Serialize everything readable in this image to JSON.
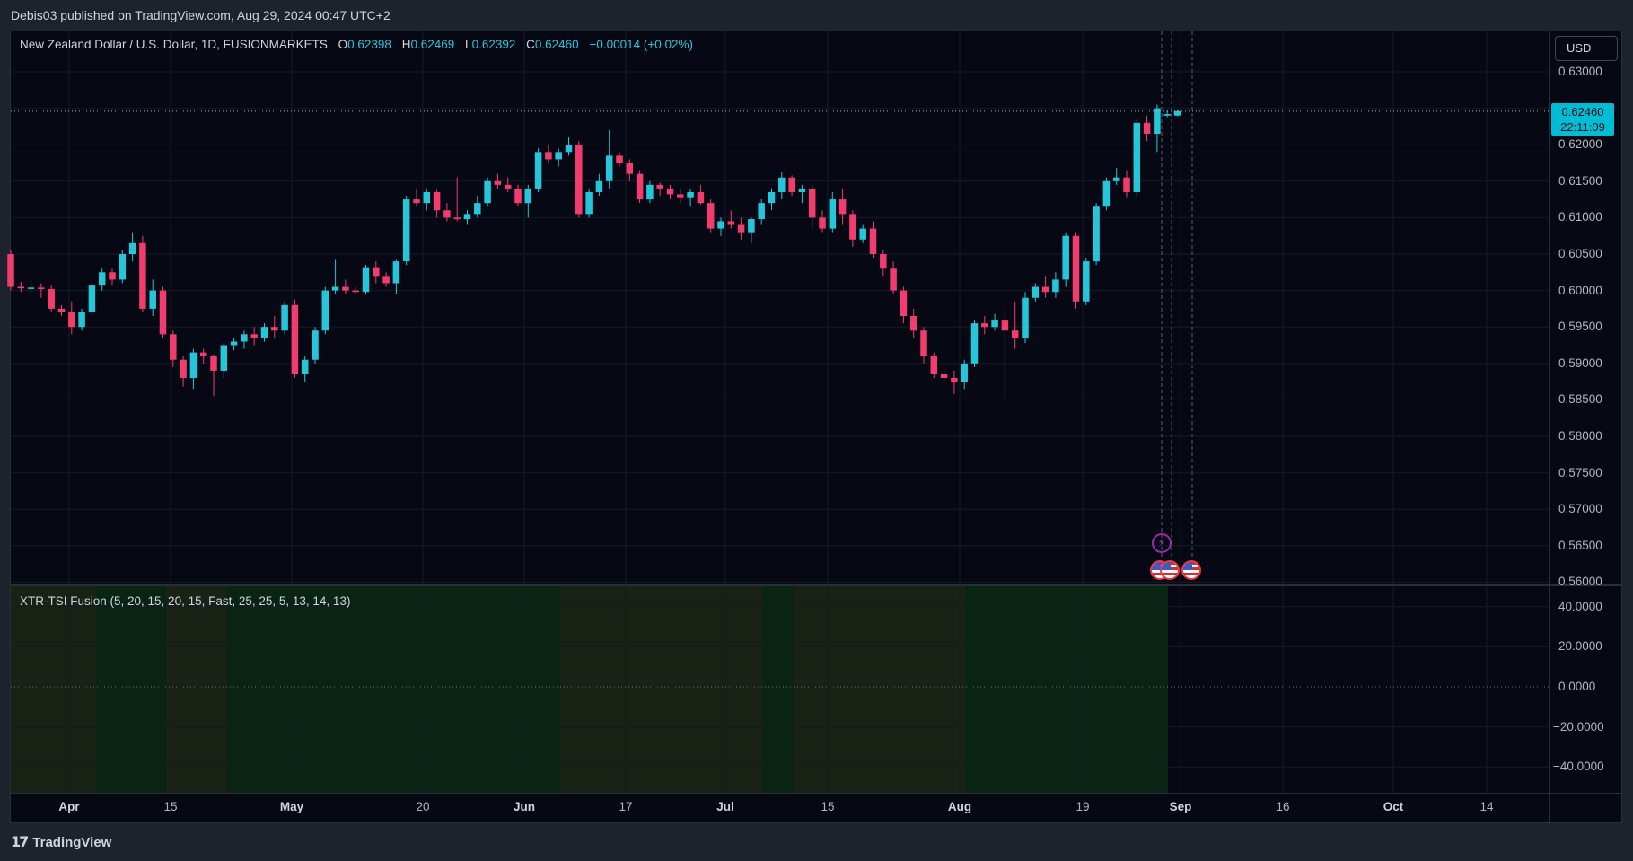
{
  "header": {
    "published_line": "Debis03 published on TradingView.com, Aug 29, 2024 00:47 UTC+2"
  },
  "legend": {
    "symbol": "New Zealand Dollar / U.S. Dollar, 1D, FUSIONMARKETS",
    "o_label": "O",
    "o_value": "0.62398",
    "h_label": "H",
    "h_value": "0.62469",
    "l_label": "L",
    "l_value": "0.62392",
    "c_label": "C",
    "c_value": "0.62460",
    "change": "+0.00014 (+0.02%)"
  },
  "indicator": {
    "label": "XTR-TSI Fusion (5, 20, 15, 20, 15, Fast, 25, 25, 5, 13, 14, 13)"
  },
  "price_axis": {
    "currency_button": "USD",
    "current_price": "0.62460",
    "countdown": "22:11:09",
    "ticks": [
      "0.63000",
      "0.62000",
      "0.61500",
      "0.61000",
      "0.60500",
      "0.60000",
      "0.59500",
      "0.59000",
      "0.58500",
      "0.58000",
      "0.57500",
      "0.57000",
      "0.56500",
      "0.56000"
    ],
    "indicator_ticks": [
      "40.0000",
      "20.0000",
      "0.0000",
      "−20.0000",
      "−40.0000"
    ]
  },
  "time_axis": {
    "labels": [
      {
        "text": "Apr",
        "bold": true
      },
      {
        "text": "15",
        "bold": false
      },
      {
        "text": "May",
        "bold": true
      },
      {
        "text": "20",
        "bold": false
      },
      {
        "text": "Jun",
        "bold": true
      },
      {
        "text": "17",
        "bold": false
      },
      {
        "text": "Jul",
        "bold": true
      },
      {
        "text": "15",
        "bold": false
      },
      {
        "text": "Aug",
        "bold": true
      },
      {
        "text": "19",
        "bold": false
      },
      {
        "text": "Sep",
        "bold": true
      },
      {
        "text": "16",
        "bold": false
      },
      {
        "text": "Oct",
        "bold": true
      },
      {
        "text": "14",
        "bold": false
      }
    ]
  },
  "colors": {
    "up": "#26c6da",
    "down": "#f23c6e",
    "background": "#060913",
    "grid": "#151a26",
    "zone_green": "#0a2414",
    "zone_olive": "#1a2216"
  },
  "footer": {
    "brand": "TradingView",
    "logo_icon": "tradingview-logo-icon"
  },
  "chart_data": {
    "type": "candlestick",
    "symbol": "New Zealand Dollar / U.S. Dollar",
    "interval": "1D",
    "ylim": [
      0.5595,
      0.6315
    ],
    "candles": [
      [
        0.605,
        0.6055,
        0.6,
        0.6005
      ],
      [
        0.6005,
        0.6012,
        0.5998,
        0.6003
      ],
      [
        0.6003,
        0.601,
        0.5998,
        0.6004
      ],
      [
        0.6004,
        0.601,
        0.599,
        0.6002
      ],
      [
        0.6002,
        0.6008,
        0.597,
        0.5975
      ],
      [
        0.5975,
        0.598,
        0.5965,
        0.597
      ],
      [
        0.597,
        0.5985,
        0.594,
        0.595
      ],
      [
        0.595,
        0.5975,
        0.5945,
        0.597
      ],
      [
        0.597,
        0.6012,
        0.5965,
        0.6008
      ],
      [
        0.6008,
        0.603,
        0.6,
        0.6025
      ],
      [
        0.6025,
        0.603,
        0.6008,
        0.6015
      ],
      [
        0.6015,
        0.6055,
        0.601,
        0.605
      ],
      [
        0.605,
        0.608,
        0.604,
        0.6065
      ],
      [
        0.6065,
        0.6075,
        0.597,
        0.5975
      ],
      [
        0.5975,
        0.6015,
        0.5965,
        0.6
      ],
      [
        0.6,
        0.6005,
        0.5935,
        0.594
      ],
      [
        0.594,
        0.5945,
        0.5895,
        0.5905
      ],
      [
        0.5905,
        0.591,
        0.5868,
        0.588
      ],
      [
        0.588,
        0.592,
        0.5865,
        0.5915
      ],
      [
        0.5915,
        0.592,
        0.59,
        0.591
      ],
      [
        0.591,
        0.5912,
        0.5855,
        0.589
      ],
      [
        0.589,
        0.5928,
        0.588,
        0.5925
      ],
      [
        0.5925,
        0.5935,
        0.5918,
        0.593
      ],
      [
        0.593,
        0.5945,
        0.592,
        0.594
      ],
      [
        0.594,
        0.595,
        0.5925,
        0.5935
      ],
      [
        0.5935,
        0.5955,
        0.593,
        0.595
      ],
      [
        0.595,
        0.5965,
        0.5935,
        0.5945
      ],
      [
        0.5945,
        0.5985,
        0.594,
        0.598
      ],
      [
        0.598,
        0.5988,
        0.588,
        0.5885
      ],
      [
        0.5885,
        0.591,
        0.5875,
        0.5905
      ],
      [
        0.5905,
        0.595,
        0.59,
        0.5945
      ],
      [
        0.5945,
        0.6005,
        0.594,
        0.6
      ],
      [
        0.6,
        0.6042,
        0.5995,
        0.6005
      ],
      [
        0.6005,
        0.6015,
        0.5995,
        0.6
      ],
      [
        0.6,
        0.6005,
        0.5995,
        0.5998
      ],
      [
        0.5998,
        0.6035,
        0.5995,
        0.6032
      ],
      [
        0.6032,
        0.604,
        0.601,
        0.602
      ],
      [
        0.602,
        0.6025,
        0.6005,
        0.601
      ],
      [
        0.601,
        0.6042,
        0.5995,
        0.604
      ],
      [
        0.604,
        0.613,
        0.6035,
        0.6125
      ],
      [
        0.6125,
        0.614,
        0.6115,
        0.612
      ],
      [
        0.612,
        0.614,
        0.611,
        0.6135
      ],
      [
        0.6135,
        0.6138,
        0.61,
        0.611
      ],
      [
        0.611,
        0.612,
        0.6095,
        0.61
      ],
      [
        0.61,
        0.6155,
        0.6095,
        0.6098
      ],
      [
        0.6098,
        0.611,
        0.609,
        0.6105
      ],
      [
        0.6105,
        0.613,
        0.61,
        0.612
      ],
      [
        0.612,
        0.6155,
        0.6115,
        0.615
      ],
      [
        0.615,
        0.616,
        0.614,
        0.6145
      ],
      [
        0.6145,
        0.6155,
        0.6135,
        0.614
      ],
      [
        0.614,
        0.6145,
        0.6115,
        0.612
      ],
      [
        0.612,
        0.6145,
        0.61,
        0.614
      ],
      [
        0.614,
        0.6195,
        0.6135,
        0.619
      ],
      [
        0.619,
        0.62,
        0.6175,
        0.618
      ],
      [
        0.618,
        0.6195,
        0.617,
        0.619
      ],
      [
        0.619,
        0.621,
        0.6185,
        0.62
      ],
      [
        0.62,
        0.6205,
        0.61,
        0.6105
      ],
      [
        0.6105,
        0.614,
        0.61,
        0.6135
      ],
      [
        0.6135,
        0.616,
        0.613,
        0.615
      ],
      [
        0.615,
        0.622,
        0.614,
        0.6185
      ],
      [
        0.6185,
        0.619,
        0.617,
        0.6175
      ],
      [
        0.6175,
        0.618,
        0.615,
        0.616
      ],
      [
        0.616,
        0.6165,
        0.612,
        0.6125
      ],
      [
        0.6125,
        0.615,
        0.612,
        0.6145
      ],
      [
        0.6145,
        0.6148,
        0.613,
        0.614
      ],
      [
        0.614,
        0.6145,
        0.6125,
        0.6132
      ],
      [
        0.6132,
        0.614,
        0.612,
        0.6128
      ],
      [
        0.6128,
        0.614,
        0.6115,
        0.6135
      ],
      [
        0.6135,
        0.6145,
        0.6118,
        0.612
      ],
      [
        0.612,
        0.6125,
        0.608,
        0.6085
      ],
      [
        0.6085,
        0.61,
        0.6075,
        0.6095
      ],
      [
        0.6095,
        0.611,
        0.6085,
        0.609
      ],
      [
        0.609,
        0.61,
        0.607,
        0.608
      ],
      [
        0.608,
        0.61,
        0.6065,
        0.6098
      ],
      [
        0.6098,
        0.6125,
        0.609,
        0.612
      ],
      [
        0.612,
        0.614,
        0.611,
        0.6135
      ],
      [
        0.6135,
        0.6162,
        0.6125,
        0.6155
      ],
      [
        0.6155,
        0.6158,
        0.613,
        0.6135
      ],
      [
        0.6135,
        0.6145,
        0.612,
        0.614
      ],
      [
        0.614,
        0.6145,
        0.6085,
        0.61
      ],
      [
        0.61,
        0.611,
        0.608,
        0.6085
      ],
      [
        0.6085,
        0.6135,
        0.608,
        0.6125
      ],
      [
        0.6125,
        0.614,
        0.609,
        0.6105
      ],
      [
        0.6105,
        0.611,
        0.606,
        0.607
      ],
      [
        0.607,
        0.609,
        0.6065,
        0.6085
      ],
      [
        0.6085,
        0.6095,
        0.6045,
        0.605
      ],
      [
        0.605,
        0.6055,
        0.602,
        0.603
      ],
      [
        0.603,
        0.604,
        0.5995,
        0.6
      ],
      [
        0.6,
        0.6005,
        0.5955,
        0.5965
      ],
      [
        0.5965,
        0.5975,
        0.5935,
        0.5945
      ],
      [
        0.5945,
        0.595,
        0.59,
        0.591
      ],
      [
        0.591,
        0.5915,
        0.588,
        0.5885
      ],
      [
        0.5885,
        0.589,
        0.5875,
        0.588
      ],
      [
        0.588,
        0.589,
        0.5858,
        0.5875
      ],
      [
        0.5875,
        0.5905,
        0.5865,
        0.59
      ],
      [
        0.59,
        0.596,
        0.5895,
        0.5955
      ],
      [
        0.5955,
        0.5965,
        0.594,
        0.595
      ],
      [
        0.595,
        0.5968,
        0.5945,
        0.596
      ],
      [
        0.596,
        0.5975,
        0.585,
        0.5945
      ],
      [
        0.5945,
        0.5985,
        0.592,
        0.5935
      ],
      [
        0.5935,
        0.5998,
        0.5928,
        0.599
      ],
      [
        0.599,
        0.601,
        0.5985,
        0.6005
      ],
      [
        0.6005,
        0.602,
        0.599,
        0.5998
      ],
      [
        0.5998,
        0.6025,
        0.599,
        0.6015
      ],
      [
        0.6015,
        0.608,
        0.6005,
        0.6075
      ],
      [
        0.6075,
        0.608,
        0.5975,
        0.5985
      ],
      [
        0.5985,
        0.6045,
        0.598,
        0.604
      ],
      [
        0.604,
        0.612,
        0.6035,
        0.6115
      ],
      [
        0.6115,
        0.6155,
        0.611,
        0.615
      ],
      [
        0.615,
        0.6168,
        0.6145,
        0.6155
      ],
      [
        0.6155,
        0.6165,
        0.6128,
        0.6135
      ],
      [
        0.6135,
        0.6235,
        0.613,
        0.623
      ],
      [
        0.623,
        0.624,
        0.6205,
        0.6215
      ],
      [
        0.6215,
        0.6255,
        0.619,
        0.625
      ],
      [
        0.624,
        0.6247,
        0.6238,
        0.6242
      ],
      [
        0.624,
        0.6247,
        0.6239,
        0.6246
      ]
    ],
    "last_close": 0.6246,
    "indicator_name": "XTR-TSI Fusion",
    "indicator_ylim": [
      -50,
      50
    ]
  }
}
